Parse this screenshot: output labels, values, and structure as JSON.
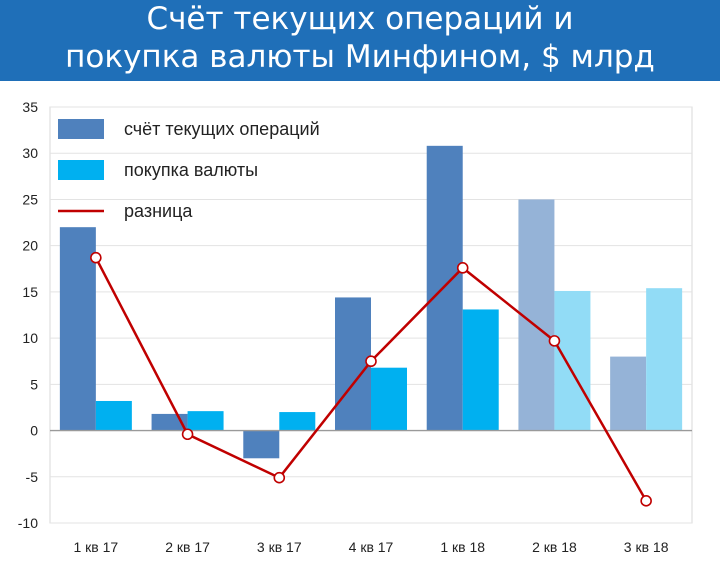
{
  "title": {
    "line1": "Счёт текущих операций и",
    "line2": "покупка валюты Минфином, $ млрд"
  },
  "colors": {
    "background": "#1f6fb8",
    "current_account": "#4f81bd",
    "current_account_light": "#95b3d7",
    "fx_purchase": "#00b0f0",
    "fx_purchase_light": "#92dcf6",
    "difference": "#c00000"
  },
  "chart_data": {
    "type": "bar",
    "categories": [
      "1 кв 17",
      "2 кв 17",
      "3 кв 17",
      "4 кв 17",
      "1 кв 18",
      "2 кв 18",
      "3 кв 18"
    ],
    "series": [
      {
        "name": "счёт текущих операций",
        "type": "bar",
        "values": [
          22.0,
          1.8,
          -3.0,
          14.4,
          30.8,
          25.0,
          8.0
        ]
      },
      {
        "name": "покупка валюты",
        "type": "bar",
        "values": [
          3.2,
          2.1,
          2.0,
          6.8,
          13.1,
          15.1,
          15.4
        ]
      },
      {
        "name": "разница",
        "type": "line",
        "values": [
          18.7,
          -0.4,
          -5.1,
          7.5,
          17.6,
          9.7,
          -7.6
        ]
      }
    ],
    "lighter_categories": [
      "2 кв 18",
      "3 кв 18"
    ],
    "ylim": [
      -10,
      35
    ],
    "yticks": [
      35,
      30,
      25,
      20,
      15,
      10,
      5,
      0,
      -5,
      -10
    ],
    "grid": "horizontal",
    "legend_position": "top-left",
    "xlabel": "",
    "ylabel": ""
  }
}
